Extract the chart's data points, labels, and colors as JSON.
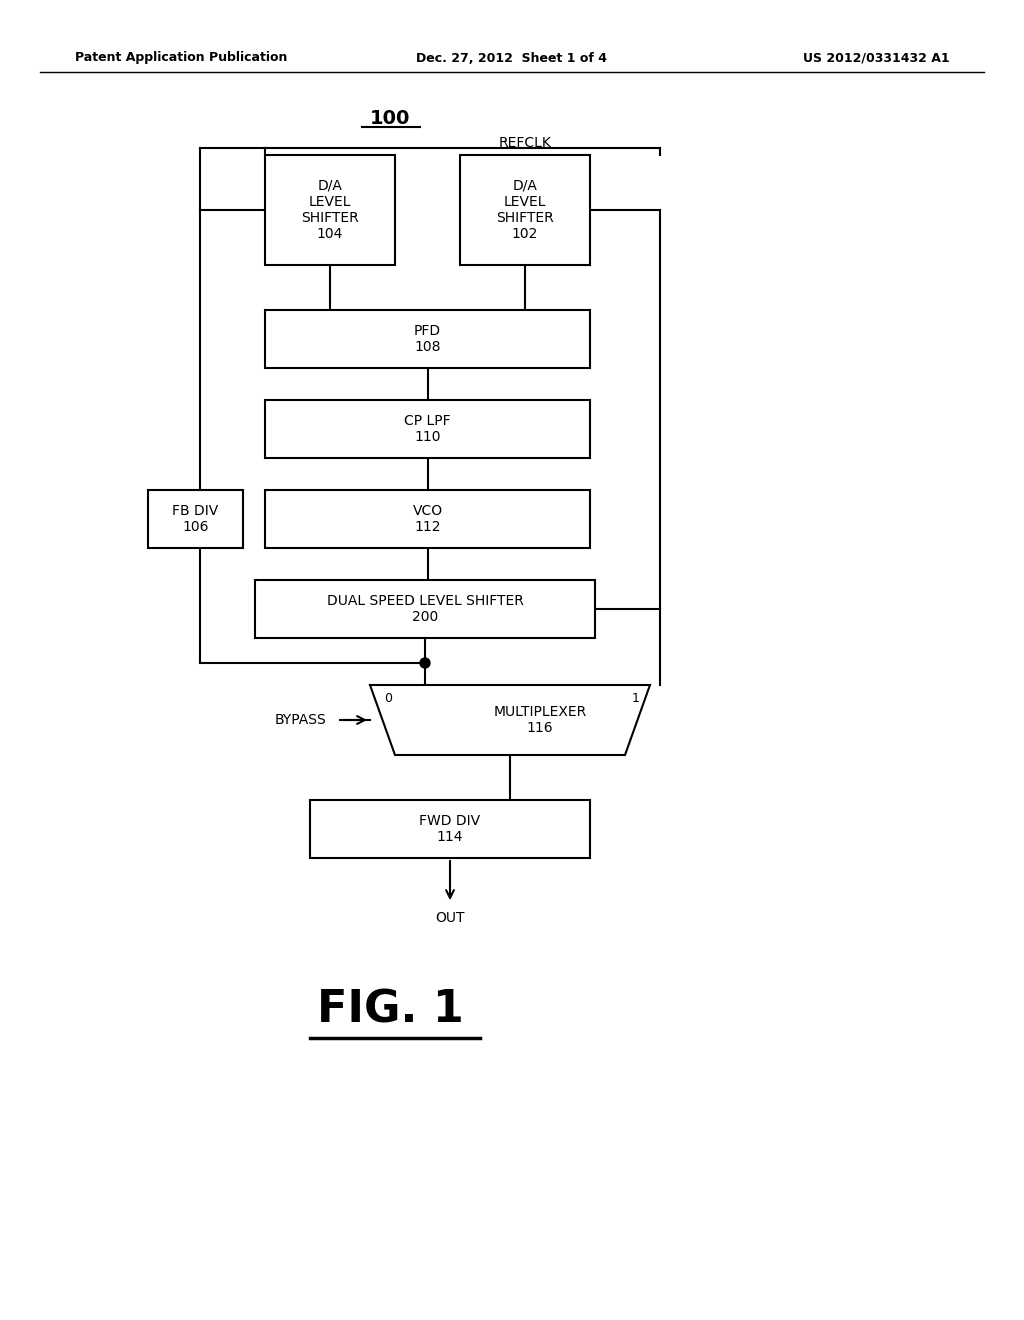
{
  "bg_color": "#ffffff",
  "text_color": "#000000",
  "line_color": "#000000",
  "header_left": "Patent Application Publication",
  "header_center": "Dec. 27, 2012  Sheet 1 of 4",
  "header_right": "US 2012/0331432 A1",
  "diagram_label": "100",
  "refclk_label": "REFCLK",
  "out_label": "OUT",
  "bypass_label": "BYPASS",
  "fig_label": "FIG. 1"
}
